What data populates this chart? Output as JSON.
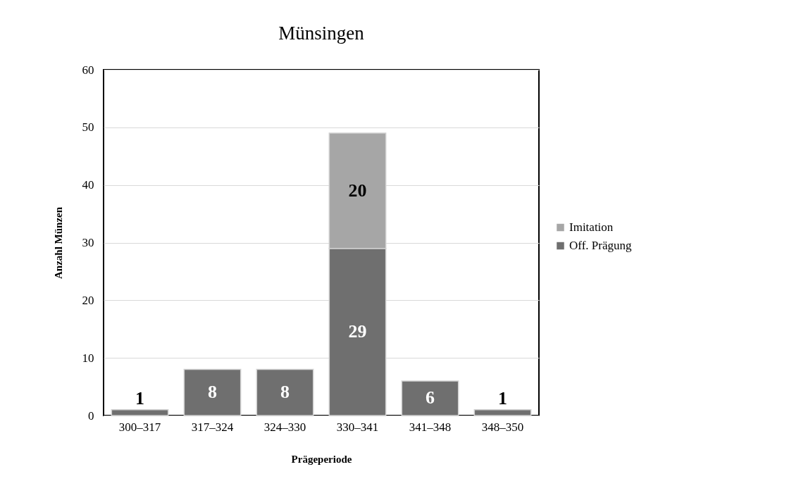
{
  "chart_data": {
    "type": "bar",
    "title": "Münsingen",
    "xlabel": "Prägeperiode",
    "ylabel": "Anzahl Münzen",
    "categories": [
      "300–317",
      "317–324",
      "324–330",
      "330–341",
      "341–348",
      "348–350"
    ],
    "stacked": true,
    "series": [
      {
        "name": "Off. Prägung",
        "color": "#6f6f6f",
        "values": [
          1,
          8,
          8,
          29,
          6,
          1
        ]
      },
      {
        "name": "Imitation",
        "color": "#a6a6a6",
        "values": [
          null,
          null,
          null,
          20,
          null,
          null
        ]
      }
    ],
    "ylim": [
      0,
      60
    ],
    "yticks": [
      0,
      10,
      20,
      30,
      40,
      50,
      60
    ],
    "grid": "y",
    "legend": "right",
    "data_labels": true
  }
}
